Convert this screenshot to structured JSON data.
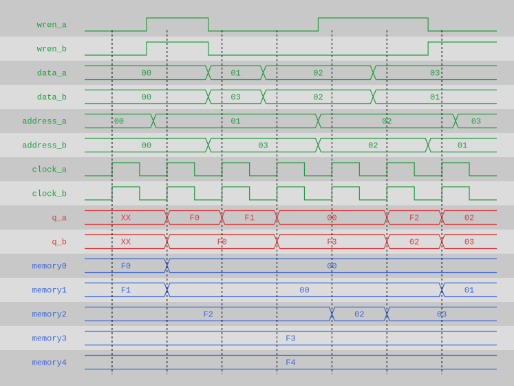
{
  "colors": {
    "control": "#1e9e3e",
    "output": "#e03c3c",
    "memory": "#3b68d8",
    "row_dark": "#c8c8c8",
    "row_light": "#dcdcdc",
    "marker": "#000000"
  },
  "time_end": 15,
  "markers": [
    1,
    3,
    5,
    7,
    9,
    11,
    13
  ],
  "signals": [
    {
      "name": "wren_a",
      "group": "control",
      "kind": "bit",
      "initial": 0,
      "edges": [
        2.25,
        4.5,
        8.5,
        12.5
      ]
    },
    {
      "name": "wren_b",
      "group": "control",
      "kind": "bit",
      "initial": 0,
      "edges": [
        2.25,
        4.5,
        12.5
      ]
    },
    {
      "name": "data_a",
      "group": "control",
      "kind": "bus",
      "segments": [
        {
          "end": 4.5,
          "value": "00"
        },
        {
          "end": 6.5,
          "value": "01"
        },
        {
          "end": 10.5,
          "value": "02"
        },
        {
          "end": 15,
          "value": "03"
        }
      ]
    },
    {
      "name": "data_b",
      "group": "control",
      "kind": "bus",
      "segments": [
        {
          "end": 4.5,
          "value": "00"
        },
        {
          "end": 6.5,
          "value": "03"
        },
        {
          "end": 10.5,
          "value": "02"
        },
        {
          "end": 15,
          "value": "01"
        }
      ]
    },
    {
      "name": "address_a",
      "group": "control",
      "kind": "bus",
      "segments": [
        {
          "end": 2.5,
          "value": "00"
        },
        {
          "end": 8.5,
          "value": "01"
        },
        {
          "end": 13.5,
          "value": "02"
        },
        {
          "end": 15,
          "value": "03"
        }
      ]
    },
    {
      "name": "address_b",
      "group": "control",
      "kind": "bus",
      "segments": [
        {
          "end": 4.5,
          "value": "00"
        },
        {
          "end": 8.5,
          "value": "03"
        },
        {
          "end": 12.5,
          "value": "02"
        },
        {
          "end": 15,
          "value": "01"
        }
      ]
    },
    {
      "name": "clock_a",
      "group": "control",
      "kind": "bit",
      "initial": 0,
      "edges": [
        1,
        2,
        3,
        4,
        5,
        6,
        7,
        8,
        9,
        10,
        11,
        12,
        13,
        14
      ]
    },
    {
      "name": "clock_b",
      "group": "control",
      "kind": "bit",
      "initial": 0,
      "edges": [
        1,
        2,
        3,
        4,
        5,
        6,
        7,
        8,
        9,
        10,
        11,
        12,
        13,
        14
      ]
    },
    {
      "name": "q_a",
      "group": "output",
      "kind": "bus",
      "segments": [
        {
          "end": 3,
          "value": "XX"
        },
        {
          "end": 5,
          "value": "F0"
        },
        {
          "end": 7,
          "value": "F1"
        },
        {
          "end": 11,
          "value": "00"
        },
        {
          "end": 13,
          "value": "F2"
        },
        {
          "end": 15,
          "value": "02"
        }
      ]
    },
    {
      "name": "q_b",
      "group": "output",
      "kind": "bus",
      "segments": [
        {
          "end": 3,
          "value": "XX"
        },
        {
          "end": 7,
          "value": "F0"
        },
        {
          "end": 11,
          "value": "F3"
        },
        {
          "end": 13,
          "value": "02"
        },
        {
          "end": 15,
          "value": "03"
        }
      ]
    },
    {
      "name": "memory0",
      "group": "memory",
      "kind": "bus",
      "segments": [
        {
          "end": 3,
          "value": "F0"
        },
        {
          "end": 15,
          "value": "00"
        }
      ]
    },
    {
      "name": "memory1",
      "group": "memory",
      "kind": "bus",
      "segments": [
        {
          "end": 3,
          "value": "F1"
        },
        {
          "end": 13,
          "value": "00"
        },
        {
          "end": 15,
          "value": "01"
        }
      ]
    },
    {
      "name": "memory2",
      "group": "memory",
      "kind": "bus",
      "segments": [
        {
          "end": 9,
          "value": "F2"
        },
        {
          "end": 11,
          "value": "02"
        },
        {
          "end": 15,
          "value": "03"
        }
      ]
    },
    {
      "name": "memory3",
      "group": "memory",
      "kind": "bus",
      "segments": [
        {
          "end": 15,
          "value": "F3"
        }
      ]
    },
    {
      "name": "memory4",
      "group": "memory",
      "kind": "bus",
      "segments": [
        {
          "end": 15,
          "value": "F4"
        }
      ]
    }
  ]
}
